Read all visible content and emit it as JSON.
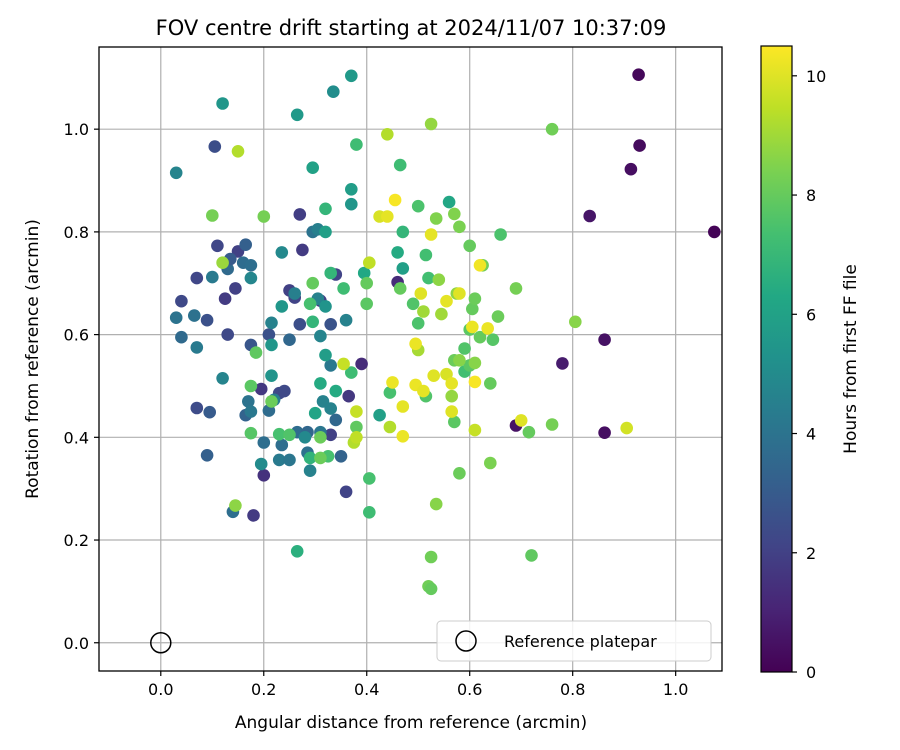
{
  "chart_data": {
    "type": "scatter",
    "title": "FOV centre drift starting at 2024/11/07 10:37:09",
    "xlabel": "Angular distance from reference (arcmin)",
    "ylabel": "Rotation from reference (arcmin)",
    "xlim": [
      -0.12,
      1.09
    ],
    "ylim": [
      -0.055,
      1.16
    ],
    "xticks": [
      0.0,
      0.2,
      0.4,
      0.6,
      0.8,
      1.0
    ],
    "xtick_labels": [
      "0.0",
      "0.2",
      "0.4",
      "0.6",
      "0.8",
      "1.0"
    ],
    "yticks": [
      0.0,
      0.2,
      0.4,
      0.6,
      0.8,
      1.0
    ],
    "ytick_labels": [
      "0.0",
      "0.2",
      "0.4",
      "0.6",
      "0.8",
      "1.0"
    ],
    "grid": true,
    "legend": {
      "position": "lower-right",
      "entries": [
        "Reference platepar"
      ]
    },
    "reference_point": {
      "x": 0.0,
      "y": 0.0,
      "label": "Reference platepar"
    },
    "colorbar": {
      "label": "Hours from first FF file",
      "colormap": "viridis",
      "range": [
        0,
        10.5
      ],
      "ticks": [
        0,
        2,
        4,
        6,
        8,
        10
      ],
      "tick_labels": [
        "0",
        "2",
        "4",
        "6",
        "8",
        "10"
      ]
    },
    "points": [
      [
        1.075,
        0.8,
        0.1
      ],
      [
        0.928,
        1.106,
        0.2
      ],
      [
        0.93,
        0.968,
        0.3
      ],
      [
        0.913,
        0.922,
        0.4
      ],
      [
        0.833,
        0.831,
        0.6
      ],
      [
        0.862,
        0.59,
        0.5
      ],
      [
        0.862,
        0.409,
        0.4
      ],
      [
        0.78,
        0.544,
        0.8
      ],
      [
        0.69,
        0.423,
        0.5
      ],
      [
        0.105,
        0.966,
        2.5
      ],
      [
        0.15,
        0.762,
        2.0
      ],
      [
        0.11,
        0.773,
        2.2
      ],
      [
        0.07,
        0.71,
        2.2
      ],
      [
        0.04,
        0.665,
        2.3
      ],
      [
        0.09,
        0.628,
        2.6
      ],
      [
        0.07,
        0.457,
        2.4
      ],
      [
        0.125,
        0.67,
        1.8
      ],
      [
        0.145,
        0.69,
        2.0
      ],
      [
        0.13,
        0.6,
        2.3
      ],
      [
        0.18,
        0.248,
        1.8
      ],
      [
        0.195,
        0.494,
        1.7
      ],
      [
        0.2,
        0.326,
        1.5
      ],
      [
        0.27,
        0.834,
        1.9
      ],
      [
        0.275,
        0.765,
        1.8
      ],
      [
        0.25,
        0.686,
        2.0
      ],
      [
        0.26,
        0.672,
        2.1
      ],
      [
        0.23,
        0.486,
        2.3
      ],
      [
        0.24,
        0.49,
        2.3
      ],
      [
        0.33,
        0.405,
        2.0
      ],
      [
        0.34,
        0.717,
        2.1
      ],
      [
        0.365,
        0.48,
        1.7
      ],
      [
        0.36,
        0.294,
        2.1
      ],
      [
        0.39,
        0.543,
        1.3
      ],
      [
        0.46,
        0.702,
        1.3
      ],
      [
        0.31,
        0.666,
        2.0
      ],
      [
        0.27,
        0.62,
        2.5
      ],
      [
        0.21,
        0.6,
        2.6
      ],
      [
        0.175,
        0.58,
        2.8
      ],
      [
        0.33,
        0.62,
        2.7
      ],
      [
        0.12,
        1.05,
        5.5
      ],
      [
        0.03,
        0.915,
        4.7
      ],
      [
        0.095,
        0.449,
        3.0
      ],
      [
        0.09,
        0.365,
        3.2
      ],
      [
        0.04,
        0.595,
        3.6
      ],
      [
        0.03,
        0.633,
        4.0
      ],
      [
        0.065,
        0.637,
        3.9
      ],
      [
        0.07,
        0.575,
        4.3
      ],
      [
        0.1,
        0.712,
        4.3
      ],
      [
        0.12,
        0.515,
        4.7
      ],
      [
        0.13,
        0.728,
        3.6
      ],
      [
        0.135,
        0.747,
        3.0
      ],
      [
        0.16,
        0.74,
        3.7
      ],
      [
        0.165,
        0.775,
        3.2
      ],
      [
        0.175,
        0.735,
        3.8
      ],
      [
        0.175,
        0.71,
        4.8
      ],
      [
        0.17,
        0.47,
        4.0
      ],
      [
        0.165,
        0.443,
        3.3
      ],
      [
        0.175,
        0.45,
        4.2
      ],
      [
        0.14,
        0.255,
        3.8
      ],
      [
        0.2,
        0.39,
        3.8
      ],
      [
        0.22,
        0.473,
        4.4
      ],
      [
        0.21,
        0.452,
        3.7
      ],
      [
        0.215,
        0.623,
        4.6
      ],
      [
        0.235,
        0.76,
        4.9
      ],
      [
        0.235,
        0.385,
        3.8
      ],
      [
        0.23,
        0.356,
        4.3
      ],
      [
        0.25,
        0.356,
        4.1
      ],
      [
        0.25,
        0.59,
        3.5
      ],
      [
        0.26,
        0.68,
        4.5
      ],
      [
        0.265,
        0.41,
        3.7
      ],
      [
        0.285,
        0.41,
        3.5
      ],
      [
        0.285,
        0.37,
        3.9
      ],
      [
        0.29,
        0.335,
        4.6
      ],
      [
        0.295,
        0.8,
        4.0
      ],
      [
        0.305,
        0.805,
        4.5
      ],
      [
        0.31,
        0.597,
        4.7
      ],
      [
        0.31,
        0.41,
        4.1
      ],
      [
        0.315,
        0.47,
        4.6
      ],
      [
        0.33,
        0.456,
        4.6
      ],
      [
        0.33,
        0.54,
        4.2
      ],
      [
        0.35,
        0.363,
        3.3
      ],
      [
        0.36,
        0.628,
        4.6
      ],
      [
        0.34,
        0.434,
        3.5
      ],
      [
        0.305,
        0.67,
        4.6
      ],
      [
        0.28,
        0.4,
        4.9
      ],
      [
        0.235,
        0.655,
        5.5
      ],
      [
        0.215,
        0.58,
        5.5
      ],
      [
        0.195,
        0.348,
        5.0
      ],
      [
        0.215,
        0.52,
        5.4
      ],
      [
        0.265,
        1.028,
        5.6
      ],
      [
        0.335,
        1.073,
        5.1
      ],
      [
        0.37,
        1.104,
        5.6
      ],
      [
        0.37,
        0.883,
        5.8
      ],
      [
        0.37,
        0.854,
        5.5
      ],
      [
        0.32,
        0.8,
        5.9
      ],
      [
        0.32,
        0.56,
        5.8
      ],
      [
        0.295,
        0.925,
        6.0
      ],
      [
        0.32,
        0.655,
        5.4
      ],
      [
        0.395,
        0.72,
        6.3
      ],
      [
        0.425,
        0.443,
        5.9
      ],
      [
        0.47,
        0.729,
        5.9
      ],
      [
        0.56,
        0.858,
        6.2
      ],
      [
        0.46,
        0.76,
        6.4
      ],
      [
        0.47,
        0.8,
        6.9
      ],
      [
        0.3,
        0.447,
        6.1
      ],
      [
        0.34,
        0.49,
        6.4
      ],
      [
        0.265,
        0.178,
        6.6
      ],
      [
        0.31,
        0.505,
        6.4
      ],
      [
        0.38,
        0.97,
        7.2
      ],
      [
        0.465,
        0.93,
        7.2
      ],
      [
        0.37,
        0.526,
        7.2
      ],
      [
        0.355,
        0.69,
        7.2
      ],
      [
        0.33,
        0.72,
        6.9
      ],
      [
        0.32,
        0.845,
        6.9
      ],
      [
        0.405,
        0.32,
        7.4
      ],
      [
        0.405,
        0.254,
        7.2
      ],
      [
        0.445,
        0.487,
        7.4
      ],
      [
        0.49,
        0.66,
        7.6
      ],
      [
        0.5,
        0.85,
        7.5
      ],
      [
        0.5,
        0.622,
        7.5
      ],
      [
        0.515,
        0.755,
        7.3
      ],
      [
        0.515,
        0.48,
        7.6
      ],
      [
        0.52,
        0.71,
        7.3
      ],
      [
        0.29,
        0.66,
        7.4
      ],
      [
        0.295,
        0.625,
        6.9
      ],
      [
        0.29,
        0.36,
        6.8
      ],
      [
        0.325,
        0.363,
        7.4
      ],
      [
        0.23,
        0.406,
        7.4
      ],
      [
        0.25,
        0.405,
        7.6
      ],
      [
        0.175,
        0.408,
        7.7
      ],
      [
        0.175,
        0.5,
        7.8
      ],
      [
        0.185,
        0.565,
        7.9
      ],
      [
        0.2,
        0.83,
        8.3
      ],
      [
        0.215,
        0.47,
        8.1
      ],
      [
        0.295,
        0.7,
        8.0
      ],
      [
        0.31,
        0.36,
        8.1
      ],
      [
        0.31,
        0.4,
        8.1
      ],
      [
        0.38,
        0.42,
        7.9
      ],
      [
        0.4,
        0.66,
        7.8
      ],
      [
        0.4,
        0.7,
        8.0
      ],
      [
        0.58,
        0.33,
        8.1
      ],
      [
        0.57,
        0.43,
        7.8
      ],
      [
        0.59,
        0.573,
        7.6
      ],
      [
        0.59,
        0.528,
        7.3
      ],
      [
        0.605,
        0.65,
        8.0
      ],
      [
        0.625,
        0.735,
        8.2
      ],
      [
        0.64,
        0.505,
        8.0
      ],
      [
        0.645,
        0.59,
        7.7
      ],
      [
        0.655,
        0.635,
        8.1
      ],
      [
        0.66,
        0.795,
        7.5
      ],
      [
        0.62,
        0.595,
        8.0
      ],
      [
        0.6,
        0.54,
        7.8
      ],
      [
        0.6,
        0.61,
        7.8
      ],
      [
        0.64,
        0.35,
        8.4
      ],
      [
        0.69,
        0.69,
        8.3
      ],
      [
        0.715,
        0.41,
        8.0
      ],
      [
        0.72,
        0.17,
        7.9
      ],
      [
        0.76,
        1.0,
        8.2
      ],
      [
        0.76,
        0.425,
        8.3
      ],
      [
        0.805,
        0.625,
        8.6
      ],
      [
        0.1,
        0.832,
        8.3
      ],
      [
        0.145,
        0.267,
        8.7
      ],
      [
        0.12,
        0.74,
        8.9
      ],
      [
        0.15,
        0.957,
        9.3
      ],
      [
        0.52,
        0.11,
        8.2
      ],
      [
        0.525,
        0.105,
        8.0
      ],
      [
        0.525,
        0.167,
        8.2
      ],
      [
        0.535,
        0.826,
        8.5
      ],
      [
        0.535,
        0.27,
        8.6
      ],
      [
        0.54,
        0.707,
        8.7
      ],
      [
        0.545,
        0.64,
        9.0
      ],
      [
        0.57,
        0.835,
        8.5
      ],
      [
        0.575,
        0.68,
        8.7
      ],
      [
        0.58,
        0.81,
        8.4
      ],
      [
        0.6,
        0.773,
        8.0
      ],
      [
        0.61,
        0.67,
        8.1
      ],
      [
        0.57,
        0.55,
        8.1
      ],
      [
        0.58,
        0.55,
        8.6
      ],
      [
        0.61,
        0.545,
        8.6
      ],
      [
        0.565,
        0.48,
        8.8
      ],
      [
        0.525,
        1.01,
        8.8
      ],
      [
        0.51,
        0.645,
        9.0
      ],
      [
        0.445,
        0.42,
        9.3
      ],
      [
        0.5,
        0.57,
        9.1
      ],
      [
        0.375,
        0.39,
        9.3
      ],
      [
        0.38,
        0.4,
        9.5
      ],
      [
        0.38,
        0.45,
        9.6
      ],
      [
        0.405,
        0.74,
        9.5
      ],
      [
        0.425,
        0.83,
        9.9
      ],
      [
        0.44,
        0.99,
        9.3
      ],
      [
        0.465,
        0.69,
        8.0
      ],
      [
        0.61,
        0.414,
        9.6
      ],
      [
        0.905,
        0.418,
        9.8
      ],
      [
        0.44,
        0.83,
        10.1
      ],
      [
        0.455,
        0.862,
        10.4
      ],
      [
        0.45,
        0.507,
        10.2
      ],
      [
        0.47,
        0.46,
        10.1
      ],
      [
        0.47,
        0.402,
        10.2
      ],
      [
        0.495,
        0.582,
        10.2
      ],
      [
        0.495,
        0.502,
        10.2
      ],
      [
        0.505,
        0.68,
        10.0
      ],
      [
        0.51,
        0.49,
        10.1
      ],
      [
        0.525,
        0.795,
        10.1
      ],
      [
        0.53,
        0.52,
        10.0
      ],
      [
        0.555,
        0.665,
        10.1
      ],
      [
        0.555,
        0.523,
        9.9
      ],
      [
        0.565,
        0.505,
        10.1
      ],
      [
        0.565,
        0.45,
        10.0
      ],
      [
        0.58,
        0.68,
        10.0
      ],
      [
        0.605,
        0.615,
        10.2
      ],
      [
        0.61,
        0.508,
        10.4
      ],
      [
        0.62,
        0.735,
        10.3
      ],
      [
        0.635,
        0.612,
        10.2
      ],
      [
        0.7,
        0.433,
        10.0
      ],
      [
        0.355,
        0.543,
        9.6
      ]
    ]
  }
}
